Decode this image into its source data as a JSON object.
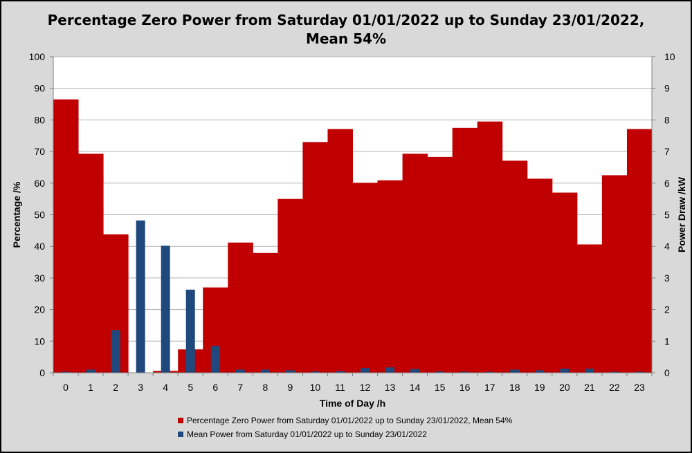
{
  "chart_data": {
    "type": "bar",
    "title_line1": "Percentage Zero Power from Saturday 01/01/2022 up to Sunday 23/01/2022,",
    "title_line2": "Mean 54%",
    "xlabel": "Time of Day /h",
    "ylabel_left": "Percentage /%",
    "ylabel_right": "Power Draw /kW",
    "categories": [
      "0",
      "1",
      "2",
      "3",
      "4",
      "5",
      "6",
      "7",
      "8",
      "9",
      "10",
      "11",
      "12",
      "13",
      "14",
      "15",
      "16",
      "17",
      "18",
      "19",
      "20",
      "21",
      "22",
      "23"
    ],
    "ylim_left": [
      0,
      100
    ],
    "ylim_right": [
      0,
      10
    ],
    "yticks_left": [
      "0",
      "10",
      "20",
      "30",
      "40",
      "50",
      "60",
      "70",
      "80",
      "90",
      "100"
    ],
    "yticks_right": [
      "0",
      "1",
      "2",
      "3",
      "4",
      "5",
      "6",
      "7",
      "8",
      "9",
      "10"
    ],
    "grid": true,
    "series": [
      {
        "name": "Percentage Zero Power from Saturday 01/01/2022 up to Sunday 23/01/2022, Mean 54%",
        "axis": "left",
        "color": "#c00000",
        "values": [
          86.5,
          69.3,
          43.8,
          0,
          0.6,
          7.4,
          27.0,
          41.2,
          37.9,
          55.0,
          73.0,
          77.1,
          60.1,
          60.9,
          69.3,
          68.3,
          77.5,
          79.5,
          67.1,
          61.4,
          57.0,
          40.6,
          62.5,
          77.1
        ]
      },
      {
        "name": "Mean Power from Saturday 01/01/2022 up to Sunday 23/01/2022",
        "axis": "right",
        "color": "#1f497d",
        "values": [
          0.03,
          0.1,
          1.35,
          4.82,
          4.02,
          2.63,
          0.85,
          0.1,
          0.1,
          0.08,
          0.04,
          0.05,
          0.15,
          0.17,
          0.12,
          0.04,
          0.03,
          0.03,
          0.1,
          0.08,
          0.13,
          0.13,
          0.03,
          0.03
        ]
      }
    ],
    "legend_position": "bottom"
  }
}
